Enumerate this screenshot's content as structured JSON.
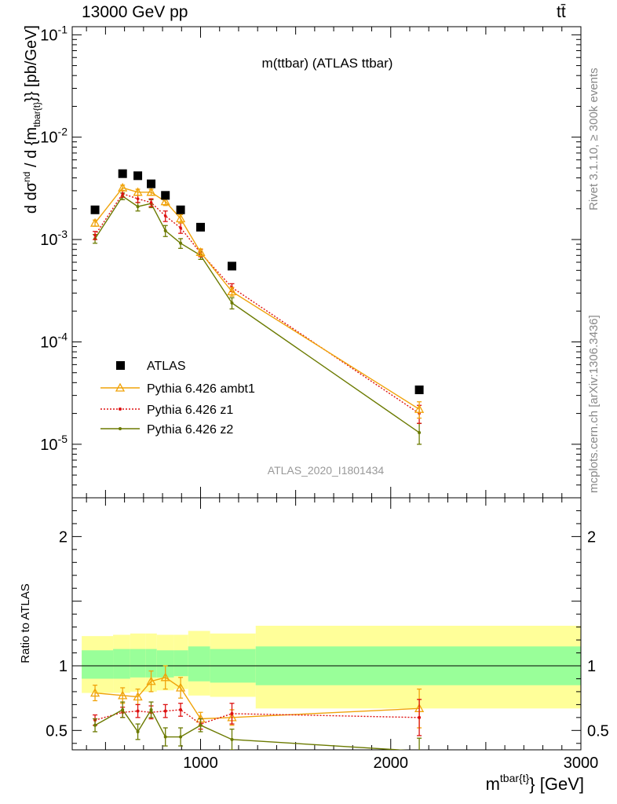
{
  "header": {
    "energy": "13000 GeV pp",
    "process": "tt̄"
  },
  "side_labels": {
    "rivet": "Rivet 3.1.10, ≥ 300k events",
    "mcplots": "mcplots.cern.ch [arXiv:1306.3436]"
  },
  "chart_data": [
    {
      "type": "scatter",
      "title": "m(ttbar) (ATLAS ttbar)",
      "watermark": "ATLAS_2020_I1801434",
      "xlabel": "m^{tbar{t}} [GeV]",
      "ylabel": "d dσ^{nd}/d {m_{tbar{t}}} [pb/GeV]",
      "xlim": [
        325,
        3000
      ],
      "ylim": [
        3e-06,
        0.12
      ],
      "yscale": "log",
      "y_ticks": [
        "10^-5",
        "10^-4",
        "10^-3",
        "10^-2",
        "10^-1"
      ],
      "legend_position": "bottom-left",
      "x": [
        445,
        590,
        670,
        740,
        815,
        895,
        1000,
        1165,
        2150
      ],
      "series": [
        {
          "name": "ATLAS",
          "marker": "square",
          "color": "#000000",
          "values": [
            0.00195,
            0.0044,
            0.0042,
            0.0035,
            0.0027,
            0.00195,
            0.00132,
            0.00055,
            3.4e-05
          ]
        },
        {
          "name": "Pythia 6.426 ambt1",
          "marker": "triangle",
          "color": "#f0a30a",
          "values": [
            0.00145,
            0.0032,
            0.0029,
            0.0029,
            0.00235,
            0.0016,
            0.00075,
            0.00031,
            2.2e-05
          ],
          "errors": [
            0.0001,
            0.0002,
            0.0002,
            0.0002,
            0.0002,
            0.00015,
            6e-05,
            3e-05,
            4e-06
          ]
        },
        {
          "name": "Pythia 6.426 z1",
          "marker": "dot-dotted",
          "color": "#dd1111",
          "values": [
            0.0011,
            0.0028,
            0.0025,
            0.0023,
            0.0017,
            0.0013,
            0.00074,
            0.00034,
            2e-05
          ],
          "errors": [
            0.0001,
            0.0002,
            0.0002,
            0.0002,
            0.0002,
            0.00015,
            6e-05,
            3e-05,
            4e-06
          ]
        },
        {
          "name": "Pythia 6.426 z2",
          "marker": "dot",
          "color": "#6b7a00",
          "values": [
            0.00102,
            0.00265,
            0.0021,
            0.00225,
            0.00122,
            0.00092,
            0.0007,
            0.00024,
            1.3e-05
          ],
          "errors": [
            0.0001,
            0.0002,
            0.0002,
            0.0002,
            0.00015,
            0.0001,
            6e-05,
            3e-05,
            3e-06
          ]
        }
      ]
    },
    {
      "type": "line",
      "ylabel": "Ratio to ATLAS",
      "xlim": [
        325,
        3000
      ],
      "ylim": [
        0.35,
        2.3
      ],
      "y_ticks": [
        0.5,
        1,
        2
      ],
      "x_ticks": [
        1000,
        2000,
        3000
      ],
      "bands": [
        {
          "x0": 375,
          "x1": 540,
          "yellow": [
            0.79,
            1.23
          ],
          "green": [
            0.9,
            1.12
          ]
        },
        {
          "x0": 540,
          "x1": 630,
          "yellow": [
            0.79,
            1.24
          ],
          "green": [
            0.9,
            1.13
          ]
        },
        {
          "x0": 630,
          "x1": 710,
          "yellow": [
            0.8,
            1.25
          ],
          "green": [
            0.91,
            1.13
          ]
        },
        {
          "x0": 710,
          "x1": 770,
          "yellow": [
            0.8,
            1.25
          ],
          "green": [
            0.91,
            1.13
          ]
        },
        {
          "x0": 770,
          "x1": 860,
          "yellow": [
            0.81,
            1.24
          ],
          "green": [
            0.91,
            1.12
          ]
        },
        {
          "x0": 860,
          "x1": 935,
          "yellow": [
            0.82,
            1.24
          ],
          "green": [
            0.92,
            1.12
          ]
        },
        {
          "x0": 935,
          "x1": 1050,
          "yellow": [
            0.77,
            1.27
          ],
          "green": [
            0.88,
            1.15
          ]
        },
        {
          "x0": 1050,
          "x1": 1290,
          "yellow": [
            0.76,
            1.25
          ],
          "green": [
            0.87,
            1.13
          ]
        },
        {
          "x0": 1290,
          "x1": 3000,
          "yellow": [
            0.67,
            1.31
          ],
          "green": [
            0.85,
            1.15
          ]
        }
      ],
      "x": [
        445,
        590,
        670,
        740,
        815,
        895,
        1000,
        1165,
        2150
      ],
      "series": [
        {
          "name": "Pythia 6.426 ambt1",
          "color": "#f0a30a",
          "values": [
            0.79,
            0.77,
            0.76,
            0.88,
            0.91,
            0.83,
            0.59,
            0.6,
            0.67
          ],
          "errors": [
            0.06,
            0.06,
            0.06,
            0.08,
            0.09,
            0.08,
            0.05,
            0.06,
            0.15
          ]
        },
        {
          "name": "Pythia 6.426 z1",
          "color": "#dd1111",
          "values": [
            0.58,
            0.64,
            0.65,
            0.64,
            0.65,
            0.66,
            0.55,
            0.63,
            0.6
          ],
          "errors": [
            0.04,
            0.04,
            0.05,
            0.05,
            0.05,
            0.05,
            0.04,
            0.08,
            0.14
          ]
        },
        {
          "name": "Pythia 6.426 z2",
          "color": "#6b7a00",
          "values": [
            0.54,
            0.66,
            0.49,
            0.66,
            0.45,
            0.45,
            0.54,
            0.43,
            0.34
          ],
          "errors": [
            0.05,
            0.06,
            0.06,
            0.06,
            0.07,
            0.07,
            0.05,
            0.08,
            0.1
          ]
        }
      ]
    }
  ]
}
